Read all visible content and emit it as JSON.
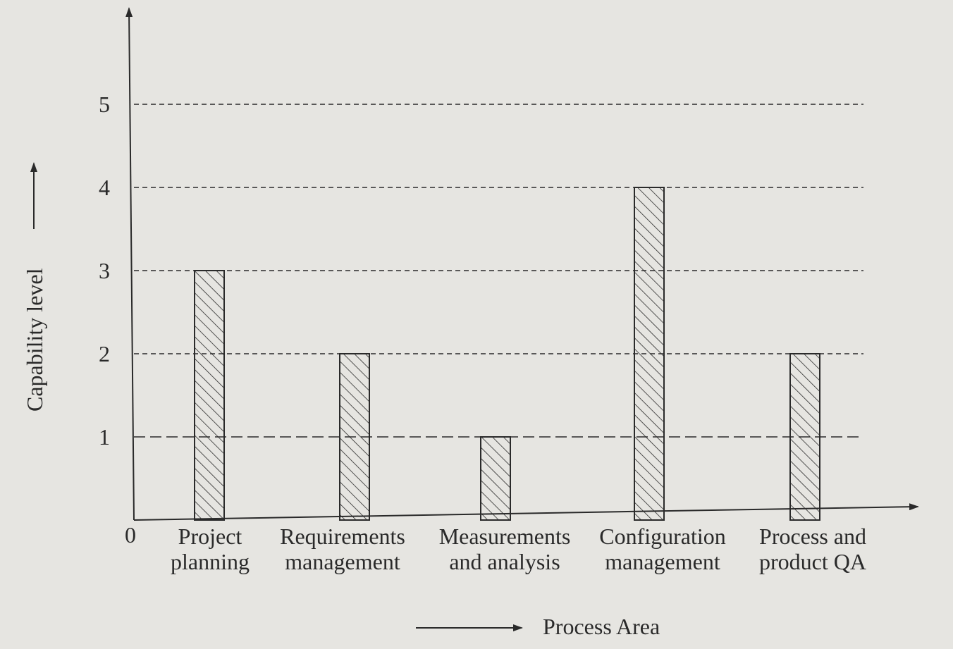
{
  "chart_data": {
    "type": "bar",
    "categories": [
      [
        "Project",
        "planning"
      ],
      [
        "Requirements",
        "management"
      ],
      [
        "Measurements",
        "and analysis"
      ],
      [
        "Configuration",
        "management"
      ],
      [
        "Process and",
        "product QA"
      ]
    ],
    "values": [
      3,
      2,
      1,
      4,
      2
    ],
    "xlabel": "Process Area",
    "ylabel": "Capability level",
    "ylim": [
      0,
      5
    ],
    "yticks": [
      "1",
      "2",
      "3",
      "4",
      "5"
    ],
    "origin_label": "0",
    "grid": "horizontal dashed",
    "bar_fill": "diagonal hatch",
    "colors": {
      "background": "#e6e5e1",
      "ink": "#2a2a2a"
    }
  }
}
